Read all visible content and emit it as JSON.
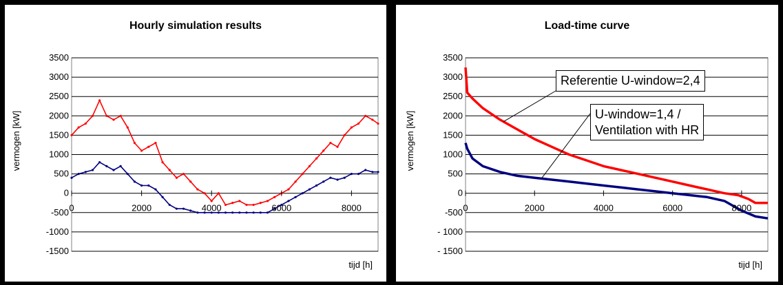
{
  "chart_data": [
    {
      "type": "line",
      "title": "Hourly simulation results",
      "xlabel": "tijd [h]",
      "ylabel": "vermogen [kW]",
      "xlim": [
        0,
        8760
      ],
      "ylim": [
        -1500,
        3500
      ],
      "yticks": [
        3500,
        3000,
        2500,
        2000,
        1500,
        1000,
        500,
        0,
        -500,
        -1000,
        -1500
      ],
      "xticks": [
        0,
        2000,
        4000,
        6000,
        8000
      ],
      "xtick_labels": [
        "0",
        "2000",
        "4000",
        "6000",
        "8000"
      ],
      "grid": "horizontal",
      "legend": "none",
      "series": [
        {
          "color": "#ff0000",
          "x": [
            0,
            200,
            400,
            600,
            800,
            1000,
            1200,
            1400,
            1600,
            1800,
            2000,
            2200,
            2400,
            2600,
            2800,
            3000,
            3200,
            3400,
            3600,
            3800,
            4000,
            4200,
            4400,
            4600,
            4800,
            5000,
            5200,
            5400,
            5600,
            5800,
            6000,
            6200,
            6400,
            6600,
            6800,
            7000,
            7200,
            7400,
            7600,
            7800,
            8000,
            8200,
            8400,
            8600,
            8760
          ],
          "y": [
            1500,
            1700,
            1800,
            2000,
            2400,
            2000,
            1900,
            2000,
            1700,
            1300,
            1100,
            1200,
            1300,
            800,
            600,
            400,
            500,
            300,
            100,
            0,
            -200,
            0,
            -300,
            -250,
            -200,
            -300,
            -300,
            -250,
            -200,
            -100,
            0,
            100,
            300,
            500,
            700,
            900,
            1100,
            1300,
            1200,
            1500,
            1700,
            1800,
            2000,
            1900,
            1800
          ]
        },
        {
          "color": "#000080",
          "x": [
            0,
            200,
            400,
            600,
            800,
            1000,
            1200,
            1400,
            1600,
            1800,
            2000,
            2200,
            2400,
            2600,
            2800,
            3000,
            3200,
            3400,
            3600,
            3800,
            4000,
            4200,
            4400,
            4600,
            4800,
            5000,
            5200,
            5400,
            5600,
            5800,
            6000,
            6200,
            6400,
            6600,
            6800,
            7000,
            7200,
            7400,
            7600,
            7800,
            8000,
            8200,
            8400,
            8600,
            8760
          ],
          "y": [
            400,
            500,
            550,
            600,
            800,
            700,
            600,
            700,
            500,
            300,
            200,
            200,
            100,
            -100,
            -300,
            -400,
            -400,
            -450,
            -500,
            -500,
            -500,
            -500,
            -500,
            -500,
            -500,
            -500,
            -500,
            -500,
            -500,
            -400,
            -300,
            -200,
            -100,
            0,
            100,
            200,
            300,
            400,
            350,
            400,
            500,
            500,
            600,
            550,
            550
          ]
        }
      ]
    },
    {
      "type": "line",
      "title": "Load-time curve",
      "xlabel": "tijd [h]",
      "ylabel": "vermogen [kW]",
      "xlim": [
        0,
        8760
      ],
      "ylim": [
        -1500,
        3500
      ],
      "yticks": [
        3500,
        3000,
        2500,
        2000,
        1500,
        1000,
        500,
        0,
        -500,
        -1000,
        -1500
      ],
      "ytick_labels": [
        "3500",
        "3000",
        "2500",
        "2000",
        "1500",
        "1000",
        "500",
        "0",
        "-500",
        "- 1000",
        "- 1500"
      ],
      "xticks": [
        0,
        2000,
        4000,
        6000,
        8000
      ],
      "xtick_labels": [
        "0",
        "2000",
        "4000",
        "6000",
        "8000"
      ],
      "grid": "horizontal",
      "legend": "none",
      "annotations": [
        "Referentie U-window=2,4",
        "U-window=1,4 /",
        "Ventilation with HR"
      ],
      "series": [
        {
          "name": "Referentie U-window=2,4",
          "color": "#ff0000",
          "x": [
            0,
            50,
            200,
            500,
            1000,
            1500,
            2000,
            2500,
            3000,
            3500,
            4000,
            4500,
            5000,
            5500,
            6000,
            6500,
            7000,
            7500,
            7900,
            8200,
            8400,
            8760
          ],
          "y": [
            3250,
            2600,
            2450,
            2200,
            1900,
            1650,
            1400,
            1200,
            1000,
            850,
            700,
            600,
            500,
            400,
            300,
            200,
            100,
            0,
            -50,
            -150,
            -250,
            -250
          ]
        },
        {
          "name": "U-window=1,4 / Ventilation with HR",
          "color": "#000080",
          "x": [
            0,
            50,
            200,
            500,
            1000,
            1500,
            2000,
            2500,
            3000,
            3500,
            4000,
            4500,
            5000,
            5500,
            6000,
            6500,
            7000,
            7500,
            8000,
            8400,
            8760
          ],
          "y": [
            1300,
            1150,
            900,
            700,
            550,
            450,
            400,
            350,
            300,
            250,
            200,
            150,
            100,
            50,
            0,
            -50,
            -100,
            -200,
            -450,
            -600,
            -650
          ]
        }
      ]
    }
  ],
  "icons": {
    "colors": {
      "red": "#ff0000",
      "navy": "#000080"
    }
  }
}
